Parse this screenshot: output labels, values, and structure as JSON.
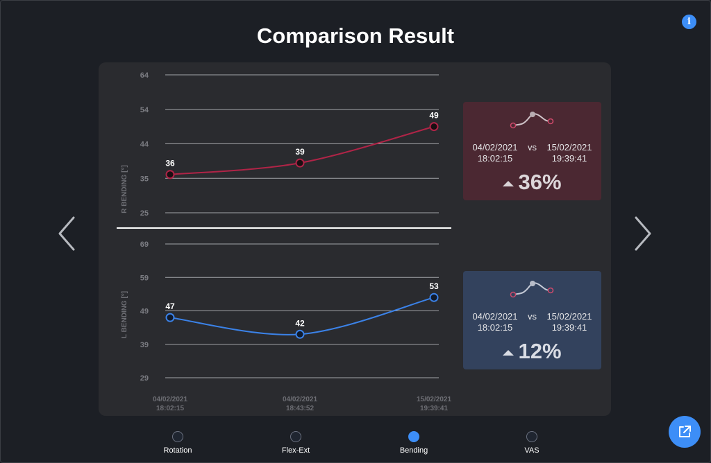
{
  "header": {
    "title": "Comparison Result"
  },
  "colors": {
    "accent": "#3d8ef7",
    "r_series": "#b02447",
    "l_series": "#3b82e8",
    "r_card": "#4b2832",
    "l_card": "#33425d"
  },
  "icons": {
    "info": "info-icon",
    "prev": "chevron-left-icon",
    "next": "chevron-right-icon",
    "share": "external-link-icon"
  },
  "chart_data": [
    {
      "type": "line",
      "ylabel": "R BENDING [°]",
      "yticks": [
        64,
        54,
        44,
        35,
        25
      ],
      "ylim": [
        25,
        64
      ],
      "x": [
        "04/02/2021 18:02:15",
        "04/02/2021 18:43:52",
        "15/02/2021 19:39:41"
      ],
      "series": [
        {
          "values": [
            36,
            39,
            49
          ]
        }
      ],
      "data_labels": [
        "36",
        "39",
        "49"
      ]
    },
    {
      "type": "line",
      "ylabel": "L BENDING [°]",
      "yticks": [
        69,
        59,
        49,
        39,
        29
      ],
      "ylim": [
        29,
        69
      ],
      "x": [
        "04/02/2021 18:02:15",
        "04/02/2021 18:43:52",
        "15/02/2021 19:39:41"
      ],
      "series": [
        {
          "values": [
            47,
            42,
            53
          ]
        }
      ],
      "data_labels": [
        "47",
        "42",
        "53"
      ]
    }
  ],
  "xaxis": {
    "ticks": [
      {
        "date": "04/02/2021",
        "time": "18:02:15"
      },
      {
        "date": "04/02/2021",
        "time": "18:43:52"
      },
      {
        "date": "15/02/2021",
        "time": "19:39:41"
      }
    ]
  },
  "cards": {
    "r": {
      "date_a": "04/02/2021",
      "time_a": "18:02:15",
      "vs": "vs",
      "date_b": "15/02/2021",
      "time_b": "19:39:41",
      "percent": "36%"
    },
    "l": {
      "date_a": "04/02/2021",
      "time_a": "18:02:15",
      "vs": "vs",
      "date_b": "15/02/2021",
      "time_b": "19:39:41",
      "percent": "12%"
    }
  },
  "tabs": [
    {
      "label": "Rotation",
      "active": false
    },
    {
      "label": "Flex-Ext",
      "active": false
    },
    {
      "label": "Bending",
      "active": true
    },
    {
      "label": "VAS",
      "active": false
    }
  ]
}
